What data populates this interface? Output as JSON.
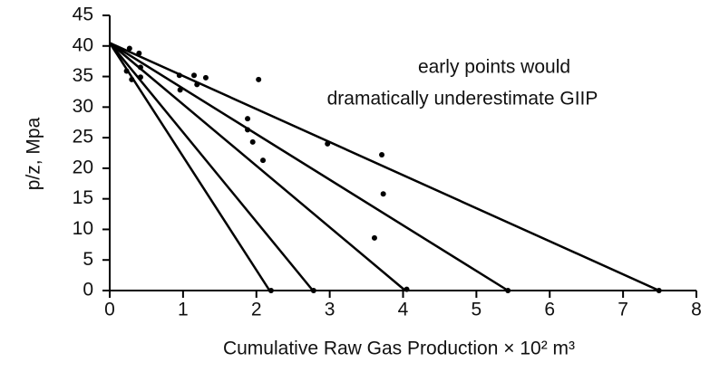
{
  "chart_data": {
    "type": "scatter",
    "x_label": "Cumulative Raw Gas Production × 10² m³",
    "y_label": "p/z, Mpa",
    "annotations": [
      "early points would",
      "dramatically underestimate GIIP"
    ],
    "color": "#000000",
    "xlim": [
      0,
      8
    ],
    "ylim": [
      0,
      45
    ],
    "xticks": [
      0,
      1,
      2,
      3,
      4,
      5,
      6,
      7,
      8
    ],
    "yticks": [
      0,
      5,
      10,
      15,
      20,
      25,
      30,
      35,
      40,
      45
    ],
    "x": [
      0.27,
      0.23,
      0.3,
      0.4,
      0.42,
      0.42,
      0.95,
      0.96,
      1.15,
      1.19,
      1.31,
      2.03,
      1.88,
      1.88,
      1.95,
      2.09,
      2.97,
      3.71,
      3.73,
      3.61,
      2.2,
      2.78,
      4.05,
      5.43,
      7.49
    ],
    "values": [
      39.6,
      35.9,
      34.5,
      38.8,
      36.5,
      34.9,
      35.2,
      32.8,
      35.2,
      33.7,
      34.8,
      34.5,
      28.1,
      26.3,
      24.3,
      21.3,
      24.0,
      22.2,
      15.8,
      8.6,
      0,
      0,
      0.2,
      0,
      0
    ],
    "lines": [
      {
        "x": [
          0,
          2.18
        ],
        "values": [
          40.5,
          0
        ]
      },
      {
        "x": [
          0,
          2.77
        ],
        "values": [
          40.5,
          0
        ]
      },
      {
        "x": [
          0,
          4.03
        ],
        "values": [
          40.5,
          0
        ]
      },
      {
        "x": [
          0,
          5.43
        ],
        "values": [
          40.5,
          0
        ]
      },
      {
        "x": [
          0,
          7.49
        ],
        "values": [
          40.5,
          0
        ]
      }
    ]
  }
}
